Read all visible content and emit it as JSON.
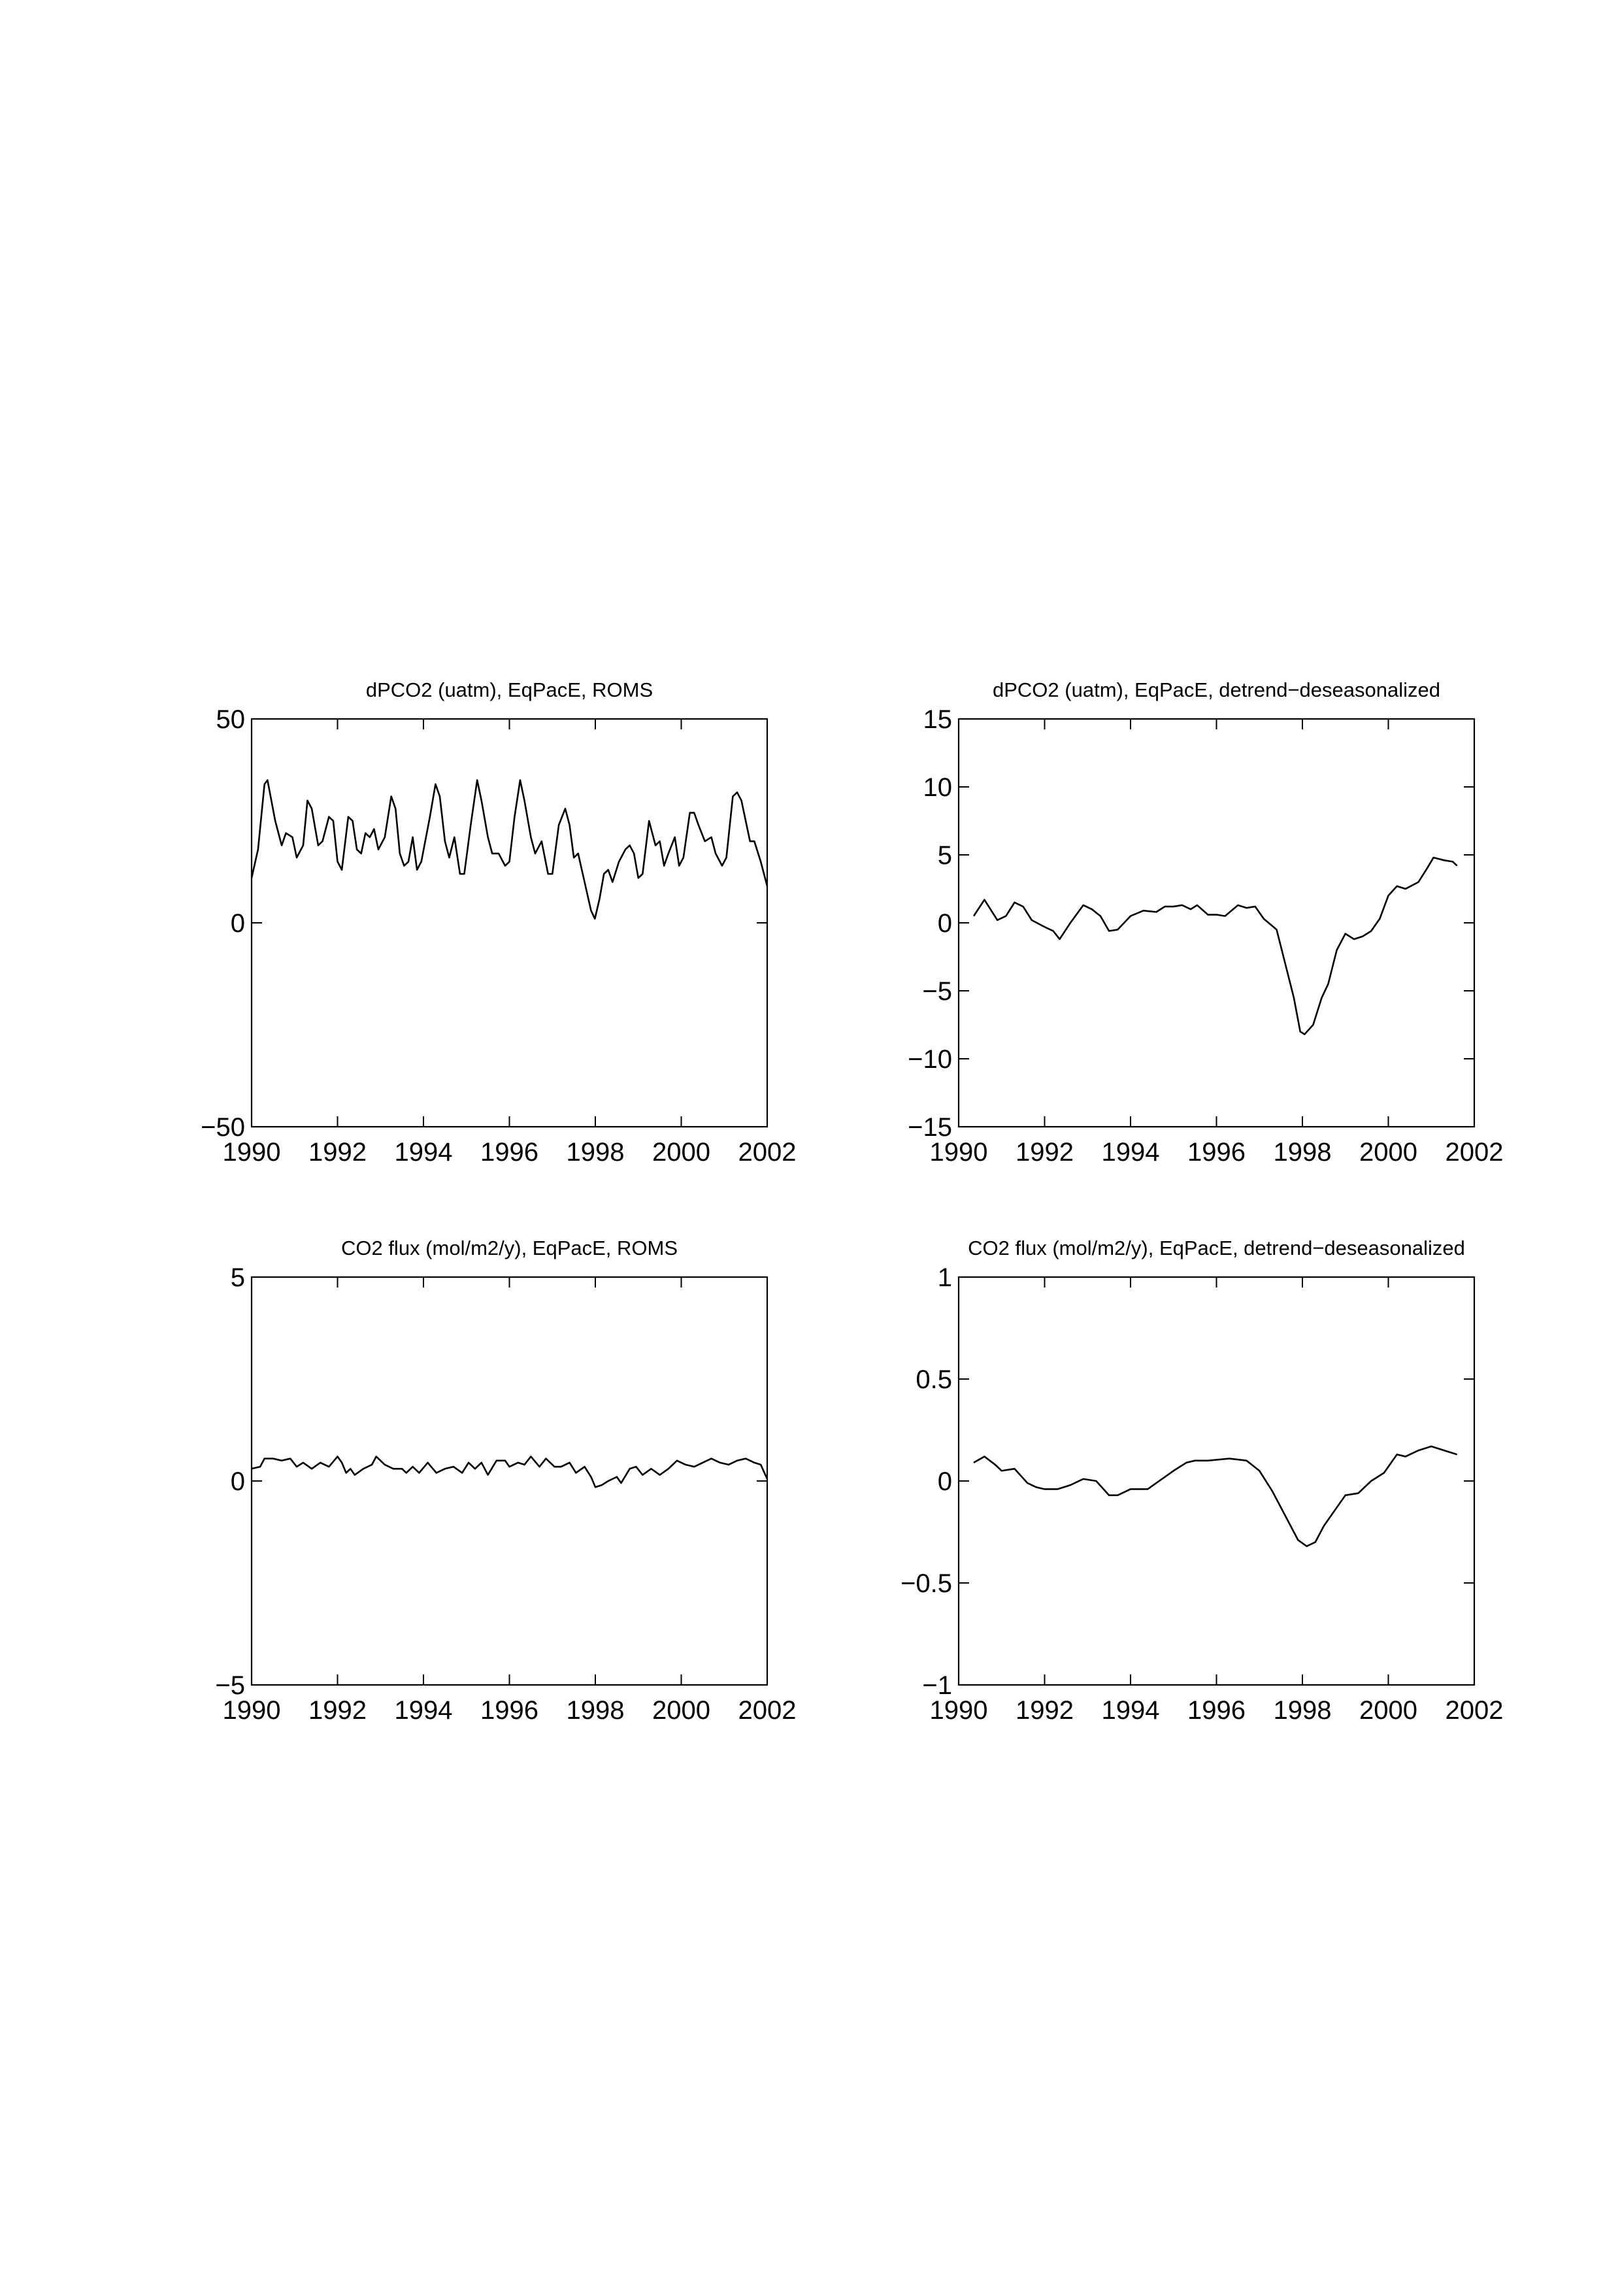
{
  "chart_data": [
    {
      "type": "line",
      "title": "dPCO2 (uatm), EqPacE, ROMS",
      "color": "#000000",
      "xlim": [
        1990,
        2002
      ],
      "xticks": [
        1990,
        1992,
        1994,
        1996,
        1998,
        2000,
        2002
      ],
      "ylim": [
        -50,
        50
      ],
      "yticks": [
        {
          "value": -50,
          "label": "−50"
        },
        0,
        50
      ],
      "x": [
        1990.0,
        1990.15,
        1990.3,
        1990.37,
        1990.55,
        1990.7,
        1990.8,
        1990.95,
        1991.05,
        1991.2,
        1991.3,
        1991.4,
        1991.55,
        1991.65,
        1991.8,
        1991.9,
        1992.0,
        1992.1,
        1992.25,
        1992.35,
        1992.45,
        1992.55,
        1992.65,
        1992.75,
        1992.85,
        1992.95,
        1993.1,
        1993.25,
        1993.35,
        1993.45,
        1993.55,
        1993.65,
        1993.75,
        1993.85,
        1993.95,
        1994.15,
        1994.28,
        1994.38,
        1994.5,
        1994.6,
        1994.72,
        1994.85,
        1994.95,
        1995.1,
        1995.25,
        1995.35,
        1995.5,
        1995.6,
        1995.75,
        1995.9,
        1996.0,
        1996.12,
        1996.25,
        1996.35,
        1996.5,
        1996.6,
        1996.75,
        1996.9,
        1997.0,
        1997.15,
        1997.3,
        1997.4,
        1997.5,
        1997.6,
        1997.75,
        1997.9,
        1997.99,
        1998.1,
        1998.2,
        1998.3,
        1998.4,
        1998.55,
        1998.7,
        1998.8,
        1998.9,
        1999.0,
        1999.1,
        1999.25,
        1999.4,
        1999.5,
        1999.6,
        1999.7,
        1999.85,
        1999.95,
        2000.05,
        2000.2,
        2000.3,
        2000.4,
        2000.55,
        2000.7,
        2000.8,
        2000.95,
        2001.05,
        2001.2,
        2001.3,
        2001.4,
        2001.6,
        2001.7,
        2001.85,
        2002.0
      ],
      "values": [
        11,
        18,
        34,
        35,
        25,
        19,
        22,
        21,
        16,
        19,
        30,
        28,
        19,
        20,
        26,
        25,
        15,
        13,
        26,
        25,
        18,
        17,
        22,
        21,
        23,
        18,
        21,
        31,
        28,
        17,
        14,
        15,
        21,
        13,
        15,
        26,
        34,
        31,
        20,
        16,
        21,
        12,
        12,
        24,
        35,
        30,
        21,
        17,
        17,
        14,
        15,
        26,
        35,
        30,
        21,
        17,
        20,
        12,
        12,
        24,
        28,
        24,
        16,
        17,
        10,
        3,
        1,
        6,
        12,
        13,
        10,
        15,
        18,
        19,
        17,
        11,
        12,
        25,
        19,
        20,
        14,
        17,
        21,
        14,
        16,
        27,
        27,
        24,
        20,
        21,
        17,
        14,
        16,
        31,
        32,
        30,
        20,
        20,
        15,
        9
      ]
    },
    {
      "type": "line",
      "title": "dPCO2 (uatm), EqPacE, detrend−deseasonalized",
      "color": "#000000",
      "xlim": [
        1990,
        2002
      ],
      "xticks": [
        1990,
        1992,
        1994,
        1996,
        1998,
        2000,
        2002
      ],
      "ylim": [
        -15,
        15
      ],
      "yticks": [
        {
          "value": -15,
          "label": "−15"
        },
        {
          "value": -10,
          "label": "−10"
        },
        {
          "value": -5,
          "label": "−5"
        },
        0,
        5,
        10,
        15
      ],
      "x": [
        1990.35,
        1990.6,
        1990.9,
        1991.1,
        1991.3,
        1991.5,
        1991.7,
        1992.0,
        1992.2,
        1992.35,
        1992.6,
        1992.9,
        1993.1,
        1993.3,
        1993.5,
        1993.7,
        1994.0,
        1994.3,
        1994.6,
        1994.8,
        1995.0,
        1995.2,
        1995.4,
        1995.55,
        1995.8,
        1996.0,
        1996.2,
        1996.5,
        1996.7,
        1996.9,
        1997.1,
        1997.4,
        1997.6,
        1997.8,
        1997.95,
        1998.05,
        1998.25,
        1998.45,
        1998.6,
        1998.8,
        1999.0,
        1999.2,
        1999.4,
        1999.6,
        1999.8,
        2000.0,
        2000.2,
        2000.4,
        2000.7,
        2000.9,
        2001.05,
        2001.3,
        2001.5,
        2001.6
      ],
      "values": [
        0.5,
        1.7,
        0.2,
        0.5,
        1.5,
        1.2,
        0.2,
        -0.3,
        -0.6,
        -1.2,
        0,
        1.3,
        1,
        0.5,
        -0.6,
        -0.5,
        0.5,
        0.9,
        0.8,
        1.2,
        1.2,
        1.3,
        1.0,
        1.3,
        0.6,
        0.6,
        0.5,
        1.3,
        1.1,
        1.2,
        0.3,
        -0.5,
        -3,
        -5.5,
        -8,
        -8.2,
        -7.5,
        -5.5,
        -4.5,
        -2,
        -0.8,
        -1.2,
        -1.0,
        -0.6,
        0.3,
        2.0,
        2.7,
        2.5,
        3.0,
        4,
        4.8,
        4.6,
        4.5,
        4.2
      ]
    },
    {
      "type": "line",
      "title": "CO2 flux (mol/m2/y), EqPacE, ROMS",
      "color": "#000000",
      "xlim": [
        1990,
        2002
      ],
      "xticks": [
        1990,
        1992,
        1994,
        1996,
        1998,
        2000,
        2002
      ],
      "ylim": [
        -5,
        5
      ],
      "yticks": [
        {
          "value": -5,
          "label": "−5"
        },
        0,
        5
      ],
      "x": [
        1990.0,
        1990.2,
        1990.3,
        1990.5,
        1990.7,
        1990.9,
        1991.05,
        1991.2,
        1991.4,
        1991.6,
        1991.8,
        1992.0,
        1992.1,
        1992.2,
        1992.3,
        1992.4,
        1992.6,
        1992.8,
        1992.9,
        1993.1,
        1993.3,
        1993.5,
        1993.6,
        1993.75,
        1993.9,
        1994.1,
        1994.3,
        1994.5,
        1994.7,
        1994.9,
        1995.05,
        1995.2,
        1995.35,
        1995.5,
        1995.7,
        1995.9,
        1996.0,
        1996.2,
        1996.35,
        1996.5,
        1996.7,
        1996.85,
        1997.05,
        1997.2,
        1997.4,
        1997.55,
        1997.75,
        1997.9,
        1998.0,
        1998.15,
        1998.3,
        1998.5,
        1998.6,
        1998.8,
        1998.95,
        1999.1,
        1999.3,
        1999.5,
        1999.7,
        1999.9,
        2000.1,
        2000.3,
        2000.5,
        2000.7,
        2000.9,
        2001.1,
        2001.3,
        2001.5,
        2001.7,
        2001.85,
        2002.0
      ],
      "values": [
        0.3,
        0.35,
        0.55,
        0.55,
        0.5,
        0.55,
        0.35,
        0.45,
        0.3,
        0.45,
        0.35,
        0.6,
        0.45,
        0.2,
        0.3,
        0.15,
        0.3,
        0.4,
        0.6,
        0.4,
        0.3,
        0.3,
        0.2,
        0.35,
        0.2,
        0.45,
        0.2,
        0.3,
        0.35,
        0.2,
        0.45,
        0.3,
        0.45,
        0.15,
        0.5,
        0.5,
        0.35,
        0.45,
        0.4,
        0.6,
        0.35,
        0.55,
        0.35,
        0.35,
        0.45,
        0.2,
        0.35,
        0.1,
        -0.15,
        -0.1,
        0,
        0.1,
        -0.05,
        0.3,
        0.35,
        0.15,
        0.3,
        0.15,
        0.3,
        0.5,
        0.4,
        0.35,
        0.45,
        0.55,
        0.45,
        0.4,
        0.5,
        0.55,
        0.45,
        0.4,
        0.05
      ]
    },
    {
      "type": "line",
      "title": "CO2 flux (mol/m2/y), EqPacE, detrend−deseasonalized",
      "color": "#000000",
      "xlim": [
        1990,
        2002
      ],
      "xticks": [
        1990,
        1992,
        1994,
        1996,
        1998,
        2000,
        2002
      ],
      "ylim": [
        -1,
        1
      ],
      "yticks": [
        {
          "value": -1,
          "label": "−1"
        },
        {
          "value": -0.5,
          "label": "−0.5"
        },
        0,
        0.5,
        1
      ],
      "x": [
        1990.35,
        1990.6,
        1990.85,
        1991.0,
        1991.3,
        1991.6,
        1991.8,
        1992.0,
        1992.3,
        1992.6,
        1992.9,
        1993.2,
        1993.5,
        1993.7,
        1994.0,
        1994.4,
        1994.6,
        1995.0,
        1995.3,
        1995.5,
        1995.8,
        1996.3,
        1996.7,
        1997.0,
        1997.3,
        1997.6,
        1997.9,
        1998.1,
        1998.3,
        1998.5,
        1998.8,
        1999.0,
        1999.3,
        1999.6,
        1999.9,
        2000.2,
        2000.4,
        2000.7,
        2001.0,
        2001.3,
        2001.6
      ],
      "values": [
        0.09,
        0.12,
        0.08,
        0.05,
        0.06,
        -0.01,
        -0.03,
        -0.04,
        -0.04,
        -0.02,
        0.01,
        0,
        -0.07,
        -0.07,
        -0.04,
        -0.04,
        -0.01,
        0.05,
        0.09,
        0.1,
        0.1,
        0.11,
        0.1,
        0.05,
        -0.05,
        -0.17,
        -0.29,
        -0.32,
        -0.3,
        -0.22,
        -0.13,
        -0.07,
        -0.06,
        0,
        0.04,
        0.13,
        0.12,
        0.15,
        0.17,
        0.15,
        0.13
      ]
    }
  ]
}
